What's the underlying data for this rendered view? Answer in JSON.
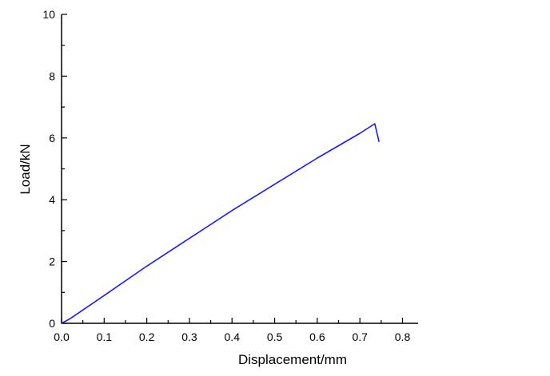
{
  "chart_data": {
    "type": "line",
    "title": "",
    "xlabel": "Displacement/mm",
    "ylabel": "Load/kN",
    "xlim": [
      0,
      0.8
    ],
    "ylim": [
      0,
      10
    ],
    "xticks": [
      "0.0",
      "0.1",
      "0.2",
      "0.3",
      "0.4",
      "0.5",
      "0.6",
      "0.7",
      "0.8"
    ],
    "yticks": [
      "0",
      "2",
      "4",
      "6",
      "8",
      "10"
    ],
    "grid": false,
    "series": [
      {
        "color": "#1a1aff",
        "x": [
          0,
          0.02,
          0.1,
          0.2,
          0.3,
          0.4,
          0.5,
          0.6,
          0.7,
          0.735,
          0.745
        ],
        "y": [
          0,
          0.15,
          0.9,
          1.85,
          2.75,
          3.65,
          4.5,
          5.35,
          6.15,
          6.46,
          5.87
        ]
      }
    ]
  }
}
